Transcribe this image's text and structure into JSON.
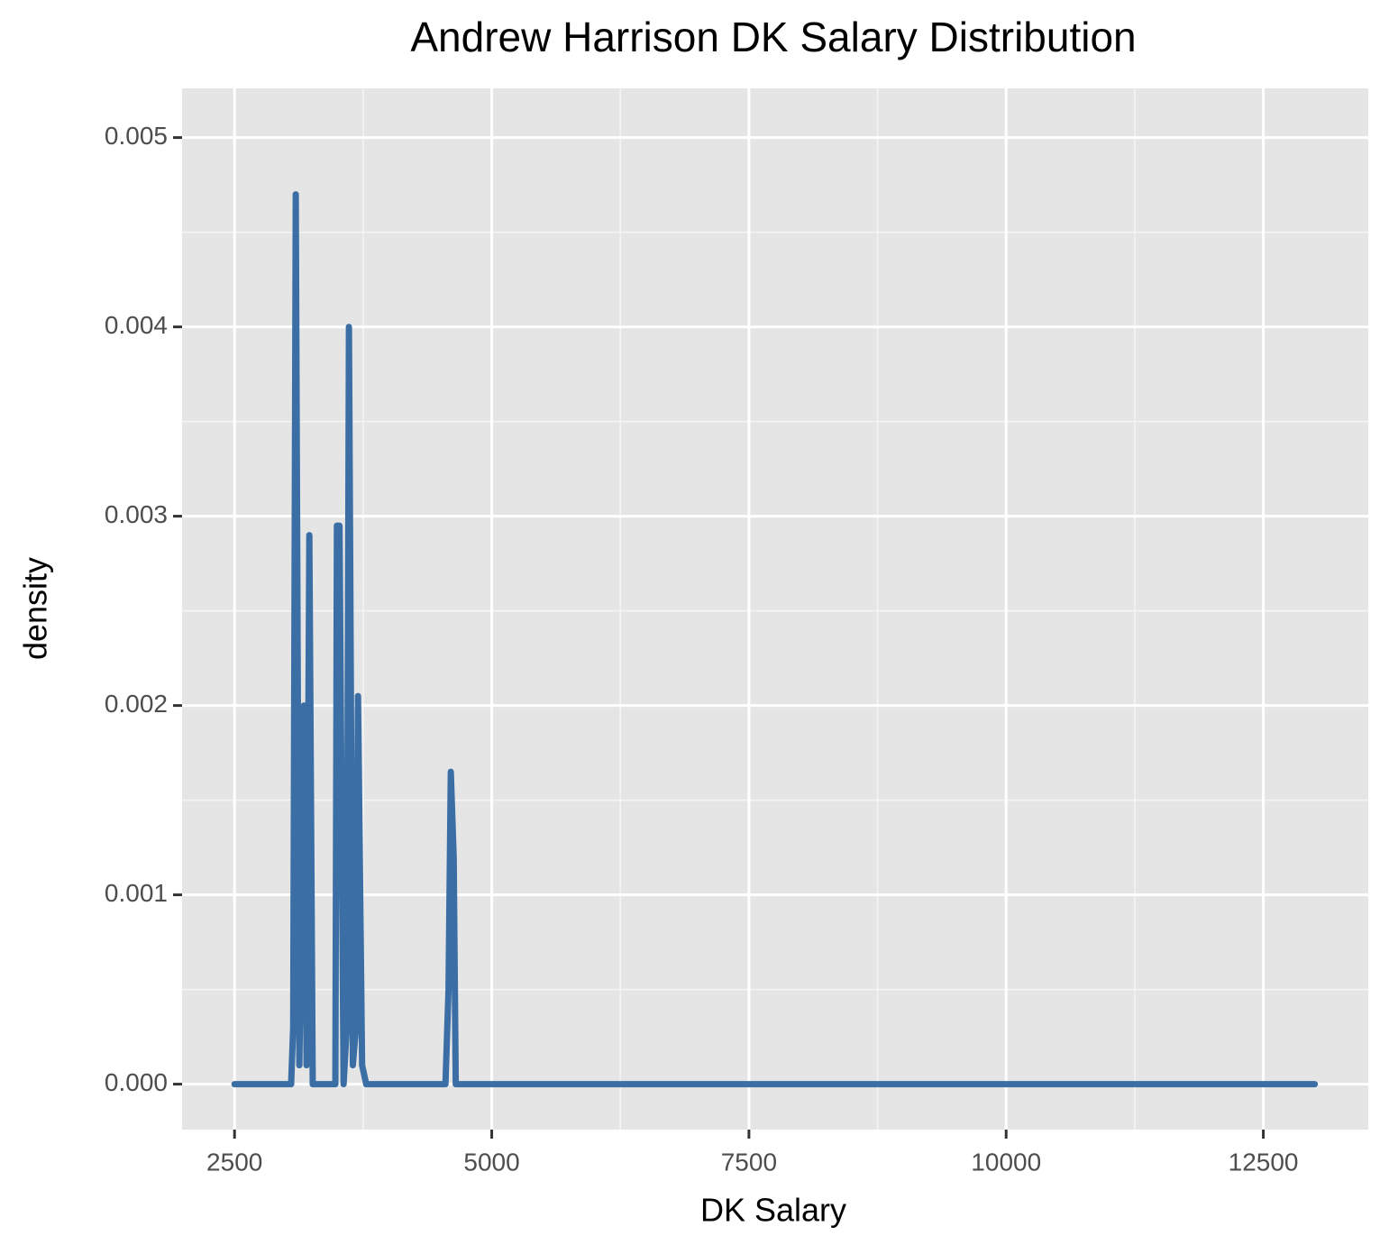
{
  "chart_data": {
    "type": "line",
    "title": "Andrew Harrison DK Salary Distribution",
    "x_label": "DK Salary",
    "y_label": "density",
    "x": [
      2500,
      3050,
      3070,
      3095,
      3130,
      3174,
      3200,
      3227,
      3260,
      3450,
      3480,
      3495,
      3520,
      3560,
      3590,
      3612,
      3650,
      3680,
      3700,
      3740,
      3780,
      4550,
      4580,
      4602,
      4630,
      4650,
      13000
    ],
    "series": [
      {
        "name": "density",
        "color": "#3a6ea5",
        "values": [
          0,
          0,
          0.0003,
          0.0047,
          0.0001,
          0.002,
          0.0001,
          0.0029,
          0,
          0,
          0,
          0.00295,
          0.00295,
          0,
          0.0003,
          0.004,
          0.0001,
          0.0003,
          0.00205,
          0.0001,
          0,
          0,
          0.0005,
          0.00165,
          0.0012,
          0,
          0
        ]
      }
    ],
    "xlim": [
      1990,
      13520
    ],
    "ylim": [
      -0.00024,
      0.00526
    ],
    "xticks": [
      2500,
      5000,
      7500,
      10000,
      12500
    ],
    "yticks": [
      {
        "value": 0,
        "label": "0.000"
      },
      {
        "value": 0.001,
        "label": "0.001"
      },
      {
        "value": 0.002,
        "label": "0.002"
      },
      {
        "value": 0.003,
        "label": "0.003"
      },
      {
        "value": 0.004,
        "label": "0.004"
      },
      {
        "value": 0.005,
        "label": "0.005"
      }
    ],
    "x_minor_ticks": [
      3750,
      6250,
      8750,
      11250
    ],
    "y_minor_ticks": [
      0.0005,
      0.0015,
      0.0025,
      0.0035,
      0.0045
    ],
    "grid": true
  }
}
